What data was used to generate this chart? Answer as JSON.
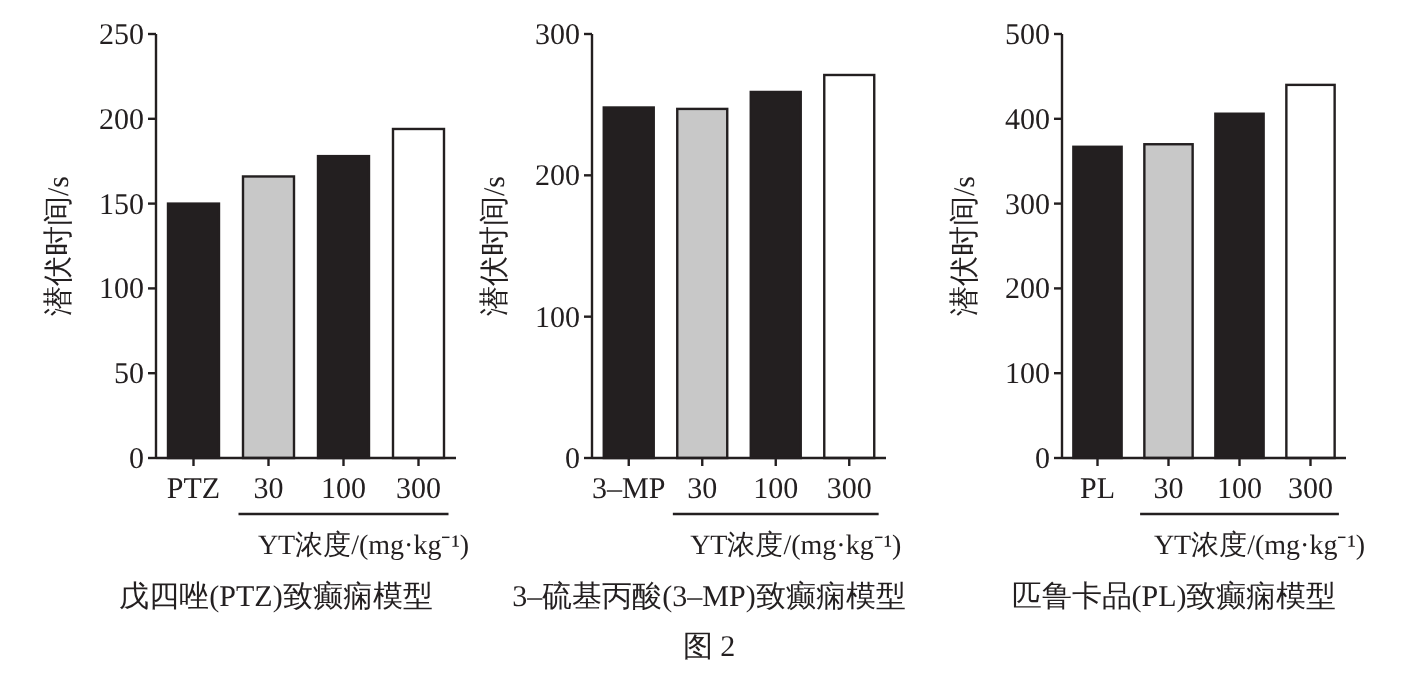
{
  "chart_data": [
    {
      "type": "bar",
      "title": "戊四唑(PTZ)致癫痫模型",
      "ylabel": "潜伏时间/s",
      "xlabel": "YT浓度/(mg·kg⁻¹)",
      "categories": [
        "PTZ",
        "30",
        "100",
        "300"
      ],
      "values": [
        150,
        166,
        178,
        194
      ],
      "colors": [
        "#231f20",
        "#c8c8c8",
        "#231f20",
        "#ffffff"
      ],
      "ylim": [
        0,
        250
      ],
      "yticks": [
        0,
        50,
        100,
        150,
        200,
        250
      ],
      "grid": false
    },
    {
      "type": "bar",
      "title": "3–硫基丙酸(3–MP)致癫痫模型",
      "ylabel": "潜伏时间/s",
      "xlabel": "YT浓度/(mg·kg⁻¹)",
      "categories": [
        "3–MP",
        "30",
        "100",
        "300"
      ],
      "values": [
        248,
        247,
        259,
        271
      ],
      "colors": [
        "#231f20",
        "#c8c8c8",
        "#231f20",
        "#ffffff"
      ],
      "ylim": [
        0,
        300
      ],
      "yticks": [
        0,
        100,
        200,
        300
      ],
      "grid": false,
      "annotations": [
        "图 2"
      ]
    },
    {
      "type": "bar",
      "title": "匹鲁卡品(PL)致癫痫模型",
      "ylabel": "潜伏时间/s",
      "xlabel": "YT浓度/(mg·kg⁻¹)",
      "categories": [
        "PL",
        "30",
        "100",
        "300"
      ],
      "values": [
        367,
        370,
        406,
        440
      ],
      "colors": [
        "#231f20",
        "#c8c8c8",
        "#231f20",
        "#ffffff"
      ],
      "ylim": [
        0,
        500
      ],
      "yticks": [
        0,
        100,
        200,
        300,
        400,
        500
      ],
      "grid": false
    }
  ]
}
